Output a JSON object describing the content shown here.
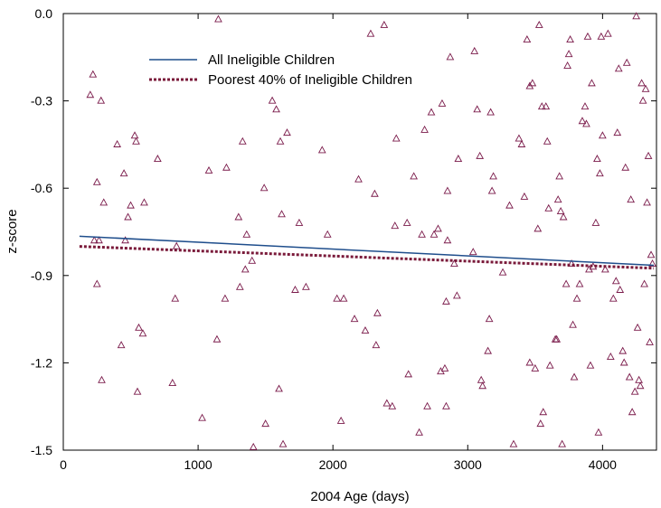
{
  "chart_data": {
    "type": "scatter",
    "title": "",
    "xlabel": "2004 Age (days)",
    "ylabel": "z-score",
    "xlim": [
      0,
      4400
    ],
    "ylim": [
      -1.5,
      0.0
    ],
    "x_ticks": [
      0,
      1000,
      2000,
      3000,
      4000
    ],
    "y_ticks": [
      0.0,
      -0.3,
      -0.6,
      -0.9,
      -1.2,
      -1.5
    ],
    "x_tick_labels": [
      "0",
      "1000",
      "2000",
      "3000",
      "4000"
    ],
    "y_tick_labels": [
      "0.0",
      "-0.3",
      "-0.6",
      "-0.9",
      "-1.2",
      "-1.5"
    ],
    "grid": false,
    "legend_position": "top-left",
    "colors": {
      "all_line": "#1f4e8c",
      "poorest_line": "#7a1a3a",
      "points": "#7a1a4a"
    },
    "series": [
      {
        "name": "All Ineligible Children",
        "type": "line",
        "style": "solid",
        "x": [
          120,
          4380
        ],
        "y": [
          -0.765,
          -0.865
        ]
      },
      {
        "name": "Poorest 40% of Ineligible Children",
        "type": "line",
        "style": "dashed",
        "x": [
          120,
          4380
        ],
        "y": [
          -0.8,
          -0.875
        ]
      },
      {
        "name": "",
        "type": "scatter",
        "marker": "triangle",
        "points": [
          [
            200,
            -0.28
          ],
          [
            220,
            -0.21
          ],
          [
            230,
            -0.78
          ],
          [
            250,
            -0.58
          ],
          [
            250,
            -0.93
          ],
          [
            265,
            -0.78
          ],
          [
            280,
            -0.3
          ],
          [
            285,
            -1.26
          ],
          [
            300,
            -0.65
          ],
          [
            400,
            -0.45
          ],
          [
            430,
            -1.14
          ],
          [
            450,
            -0.55
          ],
          [
            460,
            -0.78
          ],
          [
            480,
            -0.7
          ],
          [
            500,
            -0.66
          ],
          [
            530,
            -0.42
          ],
          [
            540,
            -0.44
          ],
          [
            550,
            -1.3
          ],
          [
            560,
            -1.08
          ],
          [
            590,
            -1.1
          ],
          [
            600,
            -0.65
          ],
          [
            700,
            -0.5
          ],
          [
            810,
            -1.27
          ],
          [
            830,
            -0.98
          ],
          [
            840,
            -0.8
          ],
          [
            1030,
            -1.39
          ],
          [
            1080,
            -0.54
          ],
          [
            1140,
            -1.12
          ],
          [
            1150,
            -0.02
          ],
          [
            1200,
            -0.98
          ],
          [
            1210,
            -0.53
          ],
          [
            1300,
            -0.7
          ],
          [
            1310,
            -0.94
          ],
          [
            1330,
            -0.44
          ],
          [
            1350,
            -0.88
          ],
          [
            1360,
            -0.76
          ],
          [
            1400,
            -0.85
          ],
          [
            1410,
            -1.49
          ],
          [
            1490,
            -0.6
          ],
          [
            1500,
            -1.41
          ],
          [
            1550,
            -0.3
          ],
          [
            1580,
            -0.33
          ],
          [
            1600,
            -1.29
          ],
          [
            1610,
            -0.44
          ],
          [
            1620,
            -0.69
          ],
          [
            1630,
            -1.48
          ],
          [
            1660,
            -0.41
          ],
          [
            1720,
            -0.95
          ],
          [
            1750,
            -0.72
          ],
          [
            1800,
            -0.94
          ],
          [
            1920,
            -0.47
          ],
          [
            1960,
            -0.76
          ],
          [
            2030,
            -0.98
          ],
          [
            2060,
            -1.4
          ],
          [
            2080,
            -0.98
          ],
          [
            2160,
            -1.05
          ],
          [
            2190,
            -0.57
          ],
          [
            2240,
            -1.09
          ],
          [
            2280,
            -0.07
          ],
          [
            2310,
            -0.62
          ],
          [
            2320,
            -1.14
          ],
          [
            2330,
            -1.03
          ],
          [
            2380,
            -0.04
          ],
          [
            2400,
            -1.34
          ],
          [
            2440,
            -1.35
          ],
          [
            2460,
            -0.73
          ],
          [
            2470,
            -0.43
          ],
          [
            2550,
            -0.72
          ],
          [
            2560,
            -1.24
          ],
          [
            2600,
            -0.56
          ],
          [
            2640,
            -1.44
          ],
          [
            2660,
            -0.76
          ],
          [
            2680,
            -0.4
          ],
          [
            2700,
            -1.35
          ],
          [
            2730,
            -0.34
          ],
          [
            2750,
            -0.76
          ],
          [
            2780,
            -0.74
          ],
          [
            2800,
            -1.23
          ],
          [
            2810,
            -0.31
          ],
          [
            2830,
            -1.22
          ],
          [
            2840,
            -1.35
          ],
          [
            2840,
            -0.99
          ],
          [
            2850,
            -0.61
          ],
          [
            2850,
            -0.78
          ],
          [
            2870,
            -0.15
          ],
          [
            2900,
            -0.86
          ],
          [
            2920,
            -0.97
          ],
          [
            2930,
            -0.5
          ],
          [
            3040,
            -0.82
          ],
          [
            3050,
            -0.13
          ],
          [
            3070,
            -0.33
          ],
          [
            3090,
            -0.49
          ],
          [
            3100,
            -1.26
          ],
          [
            3110,
            -1.28
          ],
          [
            3150,
            -1.16
          ],
          [
            3160,
            -1.05
          ],
          [
            3170,
            -0.34
          ],
          [
            3180,
            -0.61
          ],
          [
            3190,
            -0.56
          ],
          [
            3260,
            -0.89
          ],
          [
            3310,
            -0.66
          ],
          [
            3340,
            -1.48
          ],
          [
            3380,
            -0.43
          ],
          [
            3400,
            -0.45
          ],
          [
            3420,
            -0.63
          ],
          [
            3440,
            -0.09
          ],
          [
            3460,
            -0.25
          ],
          [
            3460,
            -1.2
          ],
          [
            3480,
            -0.24
          ],
          [
            3500,
            -1.22
          ],
          [
            3520,
            -0.74
          ],
          [
            3530,
            -0.04
          ],
          [
            3540,
            -1.41
          ],
          [
            3550,
            -0.32
          ],
          [
            3560,
            -1.37
          ],
          [
            3580,
            -0.32
          ],
          [
            3590,
            -0.44
          ],
          [
            3600,
            -0.67
          ],
          [
            3610,
            -1.21
          ],
          [
            3650,
            -1.12
          ],
          [
            3660,
            -1.12
          ],
          [
            3670,
            -0.64
          ],
          [
            3680,
            -0.56
          ],
          [
            3690,
            -0.68
          ],
          [
            3700,
            -1.48
          ],
          [
            3710,
            -0.7
          ],
          [
            3730,
            -0.93
          ],
          [
            3740,
            -0.18
          ],
          [
            3750,
            -0.14
          ],
          [
            3760,
            -0.09
          ],
          [
            3770,
            -0.86
          ],
          [
            3780,
            -1.07
          ],
          [
            3790,
            -1.25
          ],
          [
            3810,
            -0.98
          ],
          [
            3830,
            -0.93
          ],
          [
            3850,
            -0.37
          ],
          [
            3870,
            -0.32
          ],
          [
            3880,
            -0.38
          ],
          [
            3890,
            -0.08
          ],
          [
            3900,
            -0.88
          ],
          [
            3910,
            -1.21
          ],
          [
            3920,
            -0.24
          ],
          [
            3930,
            -0.87
          ],
          [
            3950,
            -0.72
          ],
          [
            3960,
            -0.5
          ],
          [
            3970,
            -1.44
          ],
          [
            3980,
            -0.55
          ],
          [
            3990,
            -0.08
          ],
          [
            4000,
            -0.42
          ],
          [
            4020,
            -0.88
          ],
          [
            4040,
            -0.07
          ],
          [
            4060,
            -1.18
          ],
          [
            4080,
            -0.98
          ],
          [
            4100,
            -0.92
          ],
          [
            4110,
            -0.41
          ],
          [
            4120,
            -0.19
          ],
          [
            4130,
            -0.95
          ],
          [
            4150,
            -1.16
          ],
          [
            4160,
            -1.2
          ],
          [
            4170,
            -0.53
          ],
          [
            4180,
            -0.17
          ],
          [
            4200,
            -1.25
          ],
          [
            4210,
            -0.64
          ],
          [
            4220,
            -1.37
          ],
          [
            4240,
            -1.3
          ],
          [
            4250,
            -0.01
          ],
          [
            4260,
            -1.08
          ],
          [
            4270,
            -1.26
          ],
          [
            4280,
            -1.28
          ],
          [
            4290,
            -0.24
          ],
          [
            4300,
            -0.3
          ],
          [
            4310,
            -0.93
          ],
          [
            4320,
            -0.26
          ],
          [
            4330,
            -0.65
          ],
          [
            4340,
            -0.49
          ],
          [
            4350,
            -1.13
          ],
          [
            4360,
            -0.83
          ],
          [
            4370,
            -0.86
          ]
        ]
      }
    ]
  }
}
